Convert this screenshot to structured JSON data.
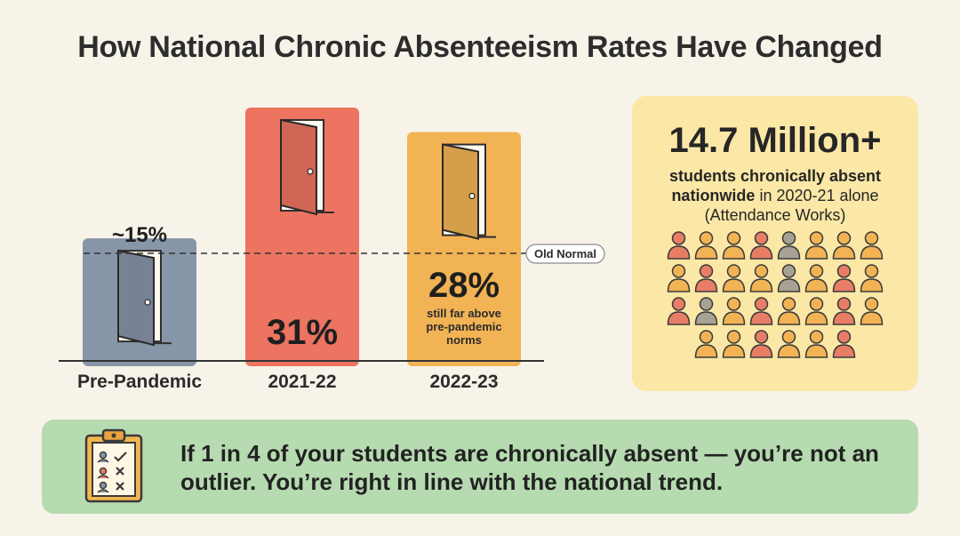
{
  "title": "How National Chronic Absenteeism Rates Have Changed",
  "chart_data": {
    "type": "bar",
    "categories": [
      "Pre-Pandemic",
      "2021-22",
      "2022-23"
    ],
    "values": [
      15,
      31,
      28
    ],
    "value_labels": [
      "~15%",
      "31%",
      "28%"
    ],
    "unit": "%",
    "colors": [
      "#8795a8",
      "#ec7460",
      "#f2b354"
    ],
    "reference_line": {
      "value": 15,
      "label": "Old Normal",
      "style": "dashed"
    },
    "annotations": [
      {
        "category": "2022-23",
        "lines": [
          "still far above",
          "pre-pandemic",
          "norms"
        ]
      }
    ],
    "icons": [
      "open-door-icon",
      "open-door-icon",
      "open-door-icon"
    ]
  },
  "stat_card": {
    "big_number": "14.7 Million+",
    "line1": "students chronically absent",
    "line2_bold": "nationwide",
    "line2_rest": " in 2020-21 alone",
    "line3": "(Attendance Works)",
    "background": "#fbe7a6",
    "people_rows": [
      [
        "#e87d66",
        "#f2b354",
        "#f2b354",
        "#e87d66",
        "#a8a294",
        "#f2b354",
        "#f2b354",
        "#f2b354"
      ],
      [
        "#f2b354",
        "#e87d66",
        "#f2b354",
        "#f2b354",
        "#a8a294",
        "#f2b354",
        "#e87d66",
        "#f2b354"
      ],
      [
        "#e87d66",
        "#a8a294",
        "#f2b354",
        "#e87d66",
        "#f2b354",
        "#f2b354",
        "#e87d66",
        "#f2b354"
      ],
      [
        "#f2b354",
        "#f2b354",
        "#e87d66",
        "#f2b354",
        "#f2b354",
        "#e87d66"
      ]
    ],
    "people_icon": "person-icon"
  },
  "banner": {
    "text": "If 1 in 4 of your students are chronically absent — you’re not an outlier. You’re right in line with the national trend.",
    "icon": "clipboard-checklist-icon",
    "background": "#b6dbb0"
  }
}
